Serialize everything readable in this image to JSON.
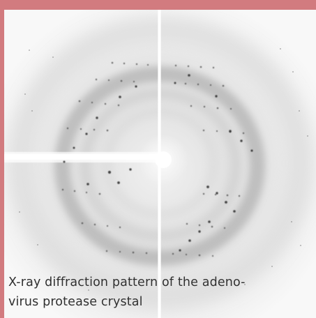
{
  "image": {
    "background_color": "#d27b7f",
    "film_color": "#f7f7f7",
    "caption_lines": [
      "X-ray diffraction pattern of the adeno-",
      "virus protease crystal"
    ]
  }
}
